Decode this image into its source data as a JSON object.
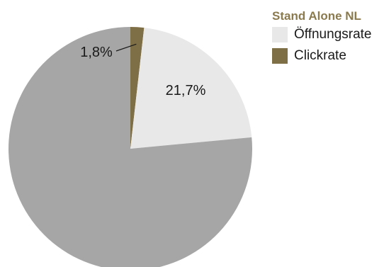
{
  "chart_data": {
    "type": "pie",
    "legend_title": "Stand Alone NL",
    "legend_position": "top-right",
    "slices": [
      {
        "name": "Clickrate",
        "value": 1.8,
        "label": "1,8%",
        "color": "#7f6f47"
      },
      {
        "name": "Öffnungsrate",
        "value": 21.7,
        "label": "21,7%",
        "color": "#e8e8e8"
      },
      {
        "name": "",
        "value": 76.5,
        "label": "",
        "color": "#a6a6a6"
      }
    ],
    "start_angle_deg": 0,
    "direction": "clockwise"
  },
  "legend": {
    "title": "Stand Alone NL",
    "items": [
      {
        "label": "Öffnungsrate",
        "color": "#e8e8e8"
      },
      {
        "label": "Clickrate",
        "color": "#7f6f47"
      }
    ]
  }
}
